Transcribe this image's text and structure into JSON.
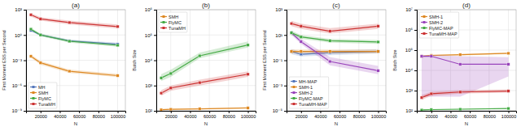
{
  "chart_data": [
    {
      "type": "line",
      "title": "(a)",
      "x_label": "N",
      "y_label": "First Moment ESS per Second",
      "x": [
        10000,
        20000,
        50000,
        100000
      ],
      "xlim": [
        5000,
        108000
      ],
      "xticks": [
        20000,
        40000,
        60000,
        80000,
        100000
      ],
      "ylim": [
        1e-09,
        1000
      ],
      "yticks": [
        {
          "value": 1e-09,
          "label": "10⁻⁹"
        },
        {
          "value": 1e-06,
          "label": "10⁻⁶"
        },
        {
          "value": 0.001,
          "label": "10⁻³"
        },
        {
          "value": 1,
          "label": "10⁰"
        },
        {
          "value": 1000,
          "label": "10³"
        }
      ],
      "log": "y",
      "grid": true,
      "legend": "lower left",
      "series": [
        {
          "name": "MH",
          "color": "#5577bb",
          "marker": "square",
          "values": [
            3.5,
            1.0,
            0.2,
            0.08
          ],
          "lo": [
            2.8,
            0.75,
            0.15,
            0.055
          ],
          "hi": [
            4.5,
            1.4,
            0.28,
            0.12
          ]
        },
        {
          "name": "SMH",
          "color": "#dd8822",
          "marker": "square",
          "values": [
            0.003,
            0.0005,
            5e-05,
            1.5e-05
          ],
          "lo": [
            0.002,
            0.0003,
            3e-05,
            1e-05
          ],
          "hi": [
            0.005,
            0.0008,
            8e-05,
            2.5e-05
          ]
        },
        {
          "name": "FlyMC",
          "color": "#44aa44",
          "marker": "square",
          "values": [
            5.0,
            1.0,
            0.18,
            0.06
          ],
          "lo": [
            3.5,
            0.7,
            0.12,
            0.04
          ],
          "hi": [
            7.0,
            1.5,
            0.26,
            0.09
          ]
        },
        {
          "name": "TunaMH",
          "color": "#cc3333",
          "marker": "square",
          "values": [
            250,
            80,
            30,
            10
          ],
          "lo": [
            150,
            50,
            18,
            6
          ],
          "hi": [
            400,
            130,
            50,
            18
          ]
        }
      ]
    },
    {
      "type": "line",
      "title": "(b)",
      "x_label": "N",
      "y_label": "Batch Size",
      "x": [
        10000,
        20000,
        50000,
        100000
      ],
      "xlim": [
        5000,
        108000
      ],
      "xticks": [
        20000,
        40000,
        60000,
        80000,
        100000
      ],
      "ylim": [
        100,
        1000000
      ],
      "yticks": [
        {
          "value": 100,
          "label": "10²"
        },
        {
          "value": 1000,
          "label": "10³"
        },
        {
          "value": 10000,
          "label": "10⁴"
        },
        {
          "value": 100000,
          "label": "10⁵"
        },
        {
          "value": 1000000,
          "label": "10⁶"
        }
      ],
      "log": "y",
      "grid": true,
      "legend": "upper left",
      "series": [
        {
          "name": "SMH",
          "color": "#dd8822",
          "marker": "square",
          "values": [
            110,
            115,
            120,
            130
          ],
          "lo": [
            105,
            110,
            115,
            125
          ],
          "hi": [
            115,
            120,
            125,
            135
          ]
        },
        {
          "name": "FlyMC",
          "color": "#44aa44",
          "marker": "square",
          "values": [
            2000,
            3000,
            15000,
            40000
          ],
          "lo": [
            1500,
            2200,
            12000,
            32000
          ],
          "hi": [
            2800,
            4200,
            20000,
            55000
          ]
        },
        {
          "name": "TunaMH",
          "color": "#cc3333",
          "marker": "square",
          "values": [
            500,
            800,
            1300,
            2800
          ],
          "lo": [
            400,
            620,
            1000,
            2200
          ],
          "hi": [
            650,
            1000,
            1700,
            3600
          ]
        }
      ]
    },
    {
      "type": "line",
      "title": "(c)",
      "x_label": "N",
      "y_label": "First Moment ESS per Second",
      "x": [
        10000,
        20000,
        50000,
        100000
      ],
      "xlim": [
        5000,
        108000
      ],
      "xticks": [
        20000,
        40000,
        60000,
        80000,
        100000
      ],
      "ylim": [
        1e-05,
        1000
      ],
      "yticks": [
        {
          "value": 1e-05,
          "label": "10⁻⁵"
        },
        {
          "value": 0.001,
          "label": "10⁻³"
        },
        {
          "value": 0.1,
          "label": "10⁻¹"
        },
        {
          "value": 10,
          "label": "10¹"
        },
        {
          "value": 1000,
          "label": "10³"
        }
      ],
      "log": "y",
      "grid": true,
      "legend": "lower left",
      "series": [
        {
          "name": "MH-MAP",
          "color": "#5577bb",
          "marker": "square",
          "values": [
            0.5,
            0.3,
            0.4,
            0.5
          ],
          "lo": [
            0.3,
            0.2,
            0.25,
            0.35
          ],
          "hi": [
            0.8,
            0.45,
            0.6,
            0.75
          ]
        },
        {
          "name": "SMH-1",
          "color": "#dd8822",
          "marker": "square",
          "values": [
            0.5,
            0.5,
            0.5,
            0.5
          ],
          "lo": [
            0.35,
            0.35,
            0.35,
            0.35
          ],
          "hi": [
            0.7,
            0.7,
            0.7,
            0.7
          ]
        },
        {
          "name": "SMH-2",
          "color": "#9944bb",
          "marker": "square",
          "values": [
            15,
            3,
            0.08,
            0.015
          ],
          "lo": [
            10,
            2,
            0.04,
            0.008
          ],
          "hi": [
            22,
            5,
            0.18,
            0.035
          ]
        },
        {
          "name": "FlyMC-MAP",
          "color": "#44aa44",
          "marker": "square",
          "values": [
            15,
            7,
            3.5,
            2.8
          ],
          "lo": [
            10,
            5,
            2.5,
            2.0
          ],
          "hi": [
            22,
            10,
            5,
            4
          ]
        },
        {
          "name": "TunaMH-MAP",
          "color": "#cc3333",
          "marker": "square",
          "values": [
            80,
            50,
            20,
            50
          ],
          "lo": [
            50,
            30,
            13,
            30
          ],
          "hi": [
            130,
            80,
            35,
            80
          ]
        }
      ]
    },
    {
      "type": "line",
      "title": "(d)",
      "x_label": "N",
      "y_label": "Batch Size",
      "x": [
        10000,
        20000,
        50000,
        100000
      ],
      "xlim": [
        5000,
        108000
      ],
      "xticks": [
        20000,
        40000,
        60000,
        80000,
        100000
      ],
      "ylim": [
        100,
        10000000
      ],
      "yticks": [
        {
          "value": 100,
          "label": "10²"
        },
        {
          "value": 1000,
          "label": "10³"
        },
        {
          "value": 10000,
          "label": "10⁴"
        },
        {
          "value": 100000,
          "label": "10⁵"
        },
        {
          "value": 1000000,
          "label": "10⁶"
        },
        {
          "value": 10000000,
          "label": "10⁷"
        }
      ],
      "log": "y",
      "grid": true,
      "legend": "upper left",
      "series": [
        {
          "name": "SMH-1",
          "color": "#dd8822",
          "marker": "square",
          "values": [
            50000,
            55000,
            60000,
            70000
          ],
          "lo": [
            45000,
            50000,
            55000,
            65000
          ],
          "hi": [
            55000,
            60000,
            65000,
            75000
          ]
        },
        {
          "name": "SMH-2",
          "color": "#9944bb",
          "marker": "square",
          "values": [
            50000,
            50000,
            20000,
            20000
          ],
          "lo": [
            500,
            500,
            500,
            5000
          ],
          "hi": [
            58000,
            58000,
            50000,
            45000
          ]
        },
        {
          "name": "FlyMC-MAP",
          "color": "#44aa44",
          "marker": "square",
          "values": [
            110,
            115,
            120,
            130
          ],
          "lo": [
            105,
            110,
            115,
            125
          ],
          "hi": [
            115,
            120,
            125,
            135
          ]
        },
        {
          "name": "TunaMH-MAP",
          "color": "#cc3333",
          "marker": "square",
          "values": [
            450,
            700,
            850,
            950
          ],
          "lo": [
            350,
            550,
            700,
            800
          ],
          "hi": [
            600,
            880,
            1050,
            1150
          ]
        }
      ]
    }
  ]
}
